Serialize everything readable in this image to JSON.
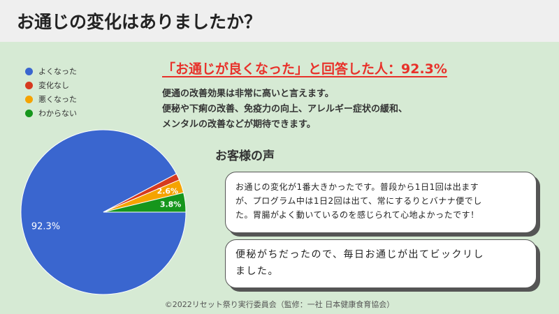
{
  "header": {
    "title": "お通じの変化はありましたか？"
  },
  "headline": "「お通じが良くなった」と回答した人：92.3%",
  "description": [
    "便通の改善効果は非常に高いと言えます。",
    "便秘や下痢の改善、免疫力の向上、アレルギー症状の緩和、",
    "メンタルの改善などが期待できます。"
  ],
  "voices": {
    "title": "お客様の声",
    "items": [
      {
        "lines": [
          "お通じの変化が1番大きかったです。普段から1日1回は出ます",
          "が、プログラム中は1日2回は出て、常にするりとバナナ便でし",
          "た。胃腸がよく動いているのを感じられて心地よかったです！"
        ]
      },
      {
        "lines": [
          "便秘がちだったので、毎日お通じが出てビックリし",
          "ました。"
        ]
      }
    ]
  },
  "footer": "©2022リセット祭り実行委員会（監修：一社 日本健康食育協会）",
  "chart_data": {
    "type": "pie",
    "title": "",
    "legend_position": "top-left",
    "categories": [
      "よくなった",
      "変化なし",
      "悪くなった",
      "わからない"
    ],
    "values": [
      92.3,
      1.3,
      2.6,
      3.8
    ],
    "colors": [
      "#3a66cf",
      "#d63a1f",
      "#f5a300",
      "#16961c"
    ],
    "data_labels": [
      "92.3%",
      "",
      "2.6%",
      "3.8%"
    ]
  }
}
